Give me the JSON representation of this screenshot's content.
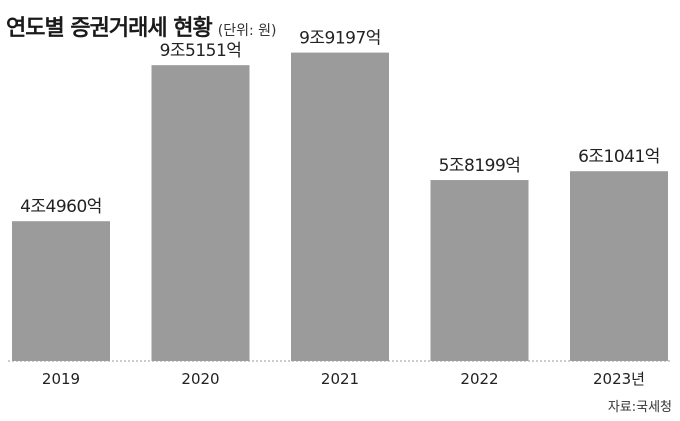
{
  "chart_data": {
    "type": "bar",
    "title": "연도별 증권거래세 현황",
    "unit_note": "(단위: 원)",
    "categories": [
      "2019",
      "2020",
      "2021",
      "2022",
      "2023년"
    ],
    "values": [
      4.496,
      9.5151,
      9.9197,
      5.8199,
      6.1041
    ],
    "value_labels": [
      "4조4960억",
      "9조5151억",
      "9조9197억",
      "5조8199억",
      "6조1041억"
    ],
    "value_unit": "조원",
    "ylim": [
      0,
      11.0
    ],
    "grid": false,
    "legend": "none",
    "colors": {
      "bar": "#9b9b9b",
      "baseline": "#999999",
      "text": "#222222"
    },
    "source": "자료:국세청"
  }
}
